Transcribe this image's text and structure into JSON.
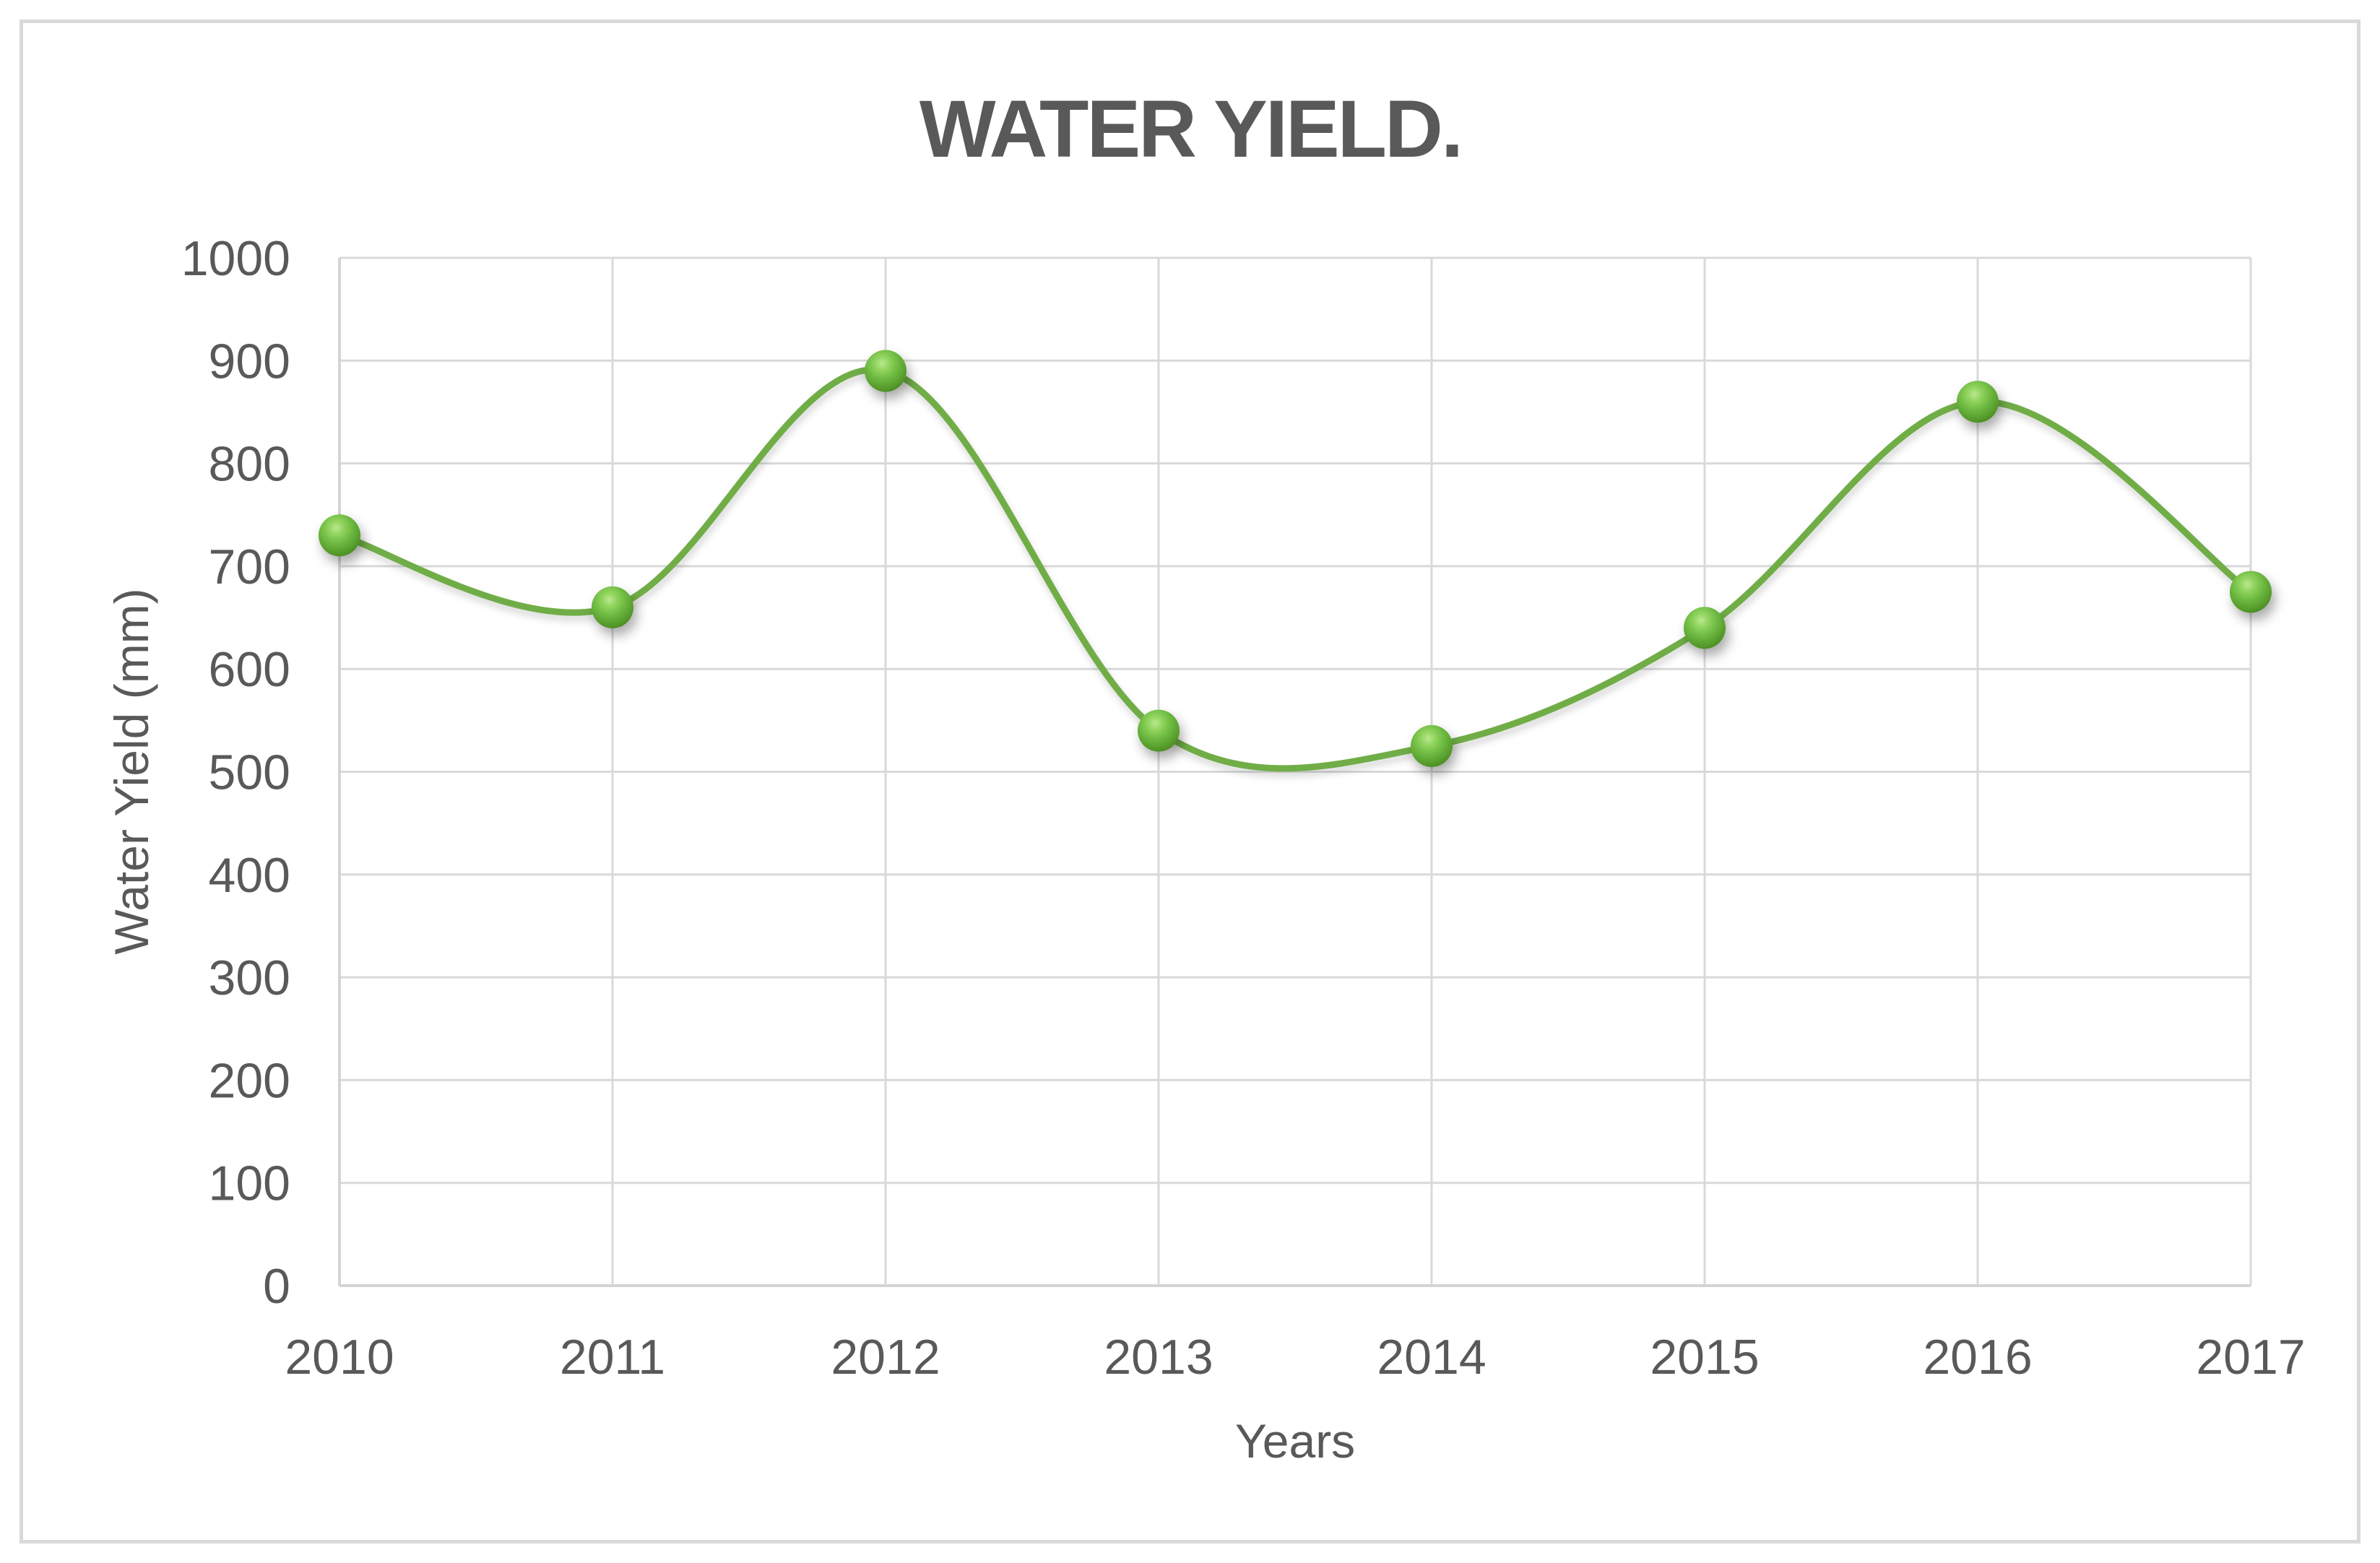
{
  "chart": {
    "title": "WATER YIELD.",
    "x_axis_title": "Years",
    "y_axis_title": "Water Yield (mm)"
  },
  "chart_data": {
    "type": "line",
    "smooth": true,
    "title": "WATER YIELD.",
    "xlabel": "Years",
    "ylabel": "Water Yield (mm)",
    "categories": [
      "2010",
      "2011",
      "2012",
      "2013",
      "2014",
      "2015",
      "2016",
      "2017"
    ],
    "values": [
      730,
      660,
      890,
      540,
      525,
      640,
      860,
      675
    ],
    "ylim": [
      0,
      1000
    ],
    "ytick_interval": 100,
    "yticks": [
      0,
      100,
      200,
      300,
      400,
      500,
      600,
      700,
      800,
      900,
      1000
    ],
    "grid": true,
    "legend": "none",
    "colors": {
      "line": "#70AD47",
      "marker_highlight": "#b9e78c",
      "marker_mid": "#6ab63e",
      "marker_dark": "#417d20",
      "gridline": "#D9D9D9",
      "axis_line": "#D4D4D4",
      "text": "#595959",
      "chart_border": "#D9D9D9",
      "background": "#FFFFFF"
    }
  }
}
